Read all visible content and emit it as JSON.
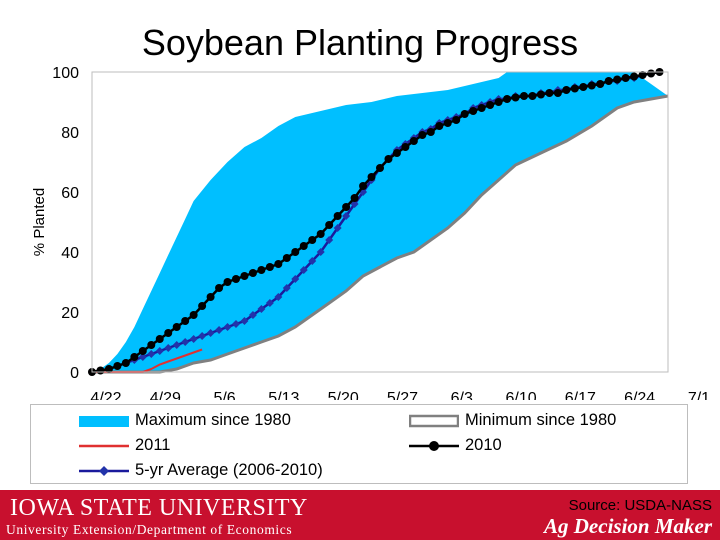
{
  "chart_data": {
    "type": "line",
    "title": "Soybean Planting Progress",
    "ylabel": "% Planted",
    "xlabel": "",
    "ylim": [
      0,
      100
    ],
    "yticks": [
      0,
      20,
      40,
      60,
      80,
      100
    ],
    "x_ticks": [
      "4/22",
      "4/29",
      "5/6",
      "5/13",
      "5/20",
      "5/27",
      "6/3",
      "6/10",
      "6/17",
      "6/24",
      "7/1"
    ],
    "grid": false,
    "legend_position": "bottom",
    "series": [
      {
        "name": "Maximum since 1980",
        "style": "area",
        "color": "#00bfff",
        "points": [
          [
            0,
            0
          ],
          [
            1,
            1
          ],
          [
            2,
            3
          ],
          [
            3,
            6
          ],
          [
            4,
            10
          ],
          [
            5,
            15
          ],
          [
            6,
            21
          ],
          [
            7,
            27
          ],
          [
            8,
            33
          ],
          [
            9,
            39
          ],
          [
            10,
            45
          ],
          [
            11,
            51
          ],
          [
            12,
            57
          ],
          [
            14,
            64
          ],
          [
            16,
            70
          ],
          [
            18,
            75
          ],
          [
            20,
            78
          ],
          [
            22,
            82
          ],
          [
            24,
            85
          ],
          [
            27,
            87
          ],
          [
            30,
            89
          ],
          [
            33,
            90
          ],
          [
            36,
            92
          ],
          [
            39,
            93
          ],
          [
            42,
            94
          ],
          [
            45,
            96
          ],
          [
            48,
            98
          ],
          [
            49,
            100
          ],
          [
            53,
            100
          ],
          [
            57,
            100
          ],
          [
            60,
            100
          ],
          [
            64,
            100
          ]
        ]
      },
      {
        "name": "Minimum since 1980",
        "style": "area-outline",
        "color": "#808080",
        "points": [
          [
            0,
            0
          ],
          [
            2,
            0
          ],
          [
            4,
            0
          ],
          [
            6,
            0
          ],
          [
            8,
            0
          ],
          [
            10,
            1
          ],
          [
            11,
            2
          ],
          [
            12,
            3
          ],
          [
            14,
            4
          ],
          [
            16,
            6
          ],
          [
            18,
            8
          ],
          [
            20,
            10
          ],
          [
            22,
            12
          ],
          [
            24,
            15
          ],
          [
            26,
            19
          ],
          [
            28,
            23
          ],
          [
            29,
            25
          ],
          [
            30,
            27
          ],
          [
            32,
            32
          ],
          [
            34,
            35
          ],
          [
            36,
            38
          ],
          [
            38,
            40
          ],
          [
            40,
            44
          ],
          [
            42,
            48
          ],
          [
            44,
            53
          ],
          [
            46,
            59
          ],
          [
            48,
            64
          ],
          [
            50,
            69
          ],
          [
            53,
            73
          ],
          [
            56,
            77
          ],
          [
            59,
            82
          ],
          [
            62,
            88
          ],
          [
            64,
            90
          ],
          [
            66,
            91
          ],
          [
            68,
            92
          ]
        ]
      },
      {
        "name": "2011",
        "style": "line",
        "color": "#e03030",
        "points": [
          [
            0,
            0
          ],
          [
            2,
            0
          ],
          [
            4,
            0
          ],
          [
            6,
            0
          ],
          [
            7,
            1
          ],
          [
            8,
            2.5
          ],
          [
            9,
            3.5
          ],
          [
            10,
            4.5
          ],
          [
            11,
            5.5
          ],
          [
            12,
            6.5
          ],
          [
            13,
            7.5
          ]
        ]
      },
      {
        "name": "2010",
        "style": "line-markers",
        "color": "#000000",
        "marker_color": "#000000",
        "points": [
          [
            0,
            0
          ],
          [
            1,
            0.5
          ],
          [
            2,
            1
          ],
          [
            3,
            2
          ],
          [
            4,
            3
          ],
          [
            5,
            5
          ],
          [
            6,
            7
          ],
          [
            7,
            9
          ],
          [
            8,
            11
          ],
          [
            9,
            13
          ],
          [
            10,
            15
          ],
          [
            11,
            17
          ],
          [
            12,
            19
          ],
          [
            13,
            22
          ],
          [
            14,
            25
          ],
          [
            15,
            28
          ],
          [
            16,
            30
          ],
          [
            17,
            31
          ],
          [
            18,
            32
          ],
          [
            19,
            33
          ],
          [
            20,
            34
          ],
          [
            21,
            35
          ],
          [
            22,
            36
          ],
          [
            23,
            38
          ],
          [
            24,
            40
          ],
          [
            25,
            42
          ],
          [
            26,
            44
          ],
          [
            27,
            46
          ],
          [
            28,
            49
          ],
          [
            29,
            52
          ],
          [
            30,
            55
          ],
          [
            31,
            58
          ],
          [
            32,
            62
          ],
          [
            33,
            65
          ],
          [
            34,
            68
          ],
          [
            35,
            71
          ],
          [
            36,
            73
          ],
          [
            37,
            75
          ],
          [
            38,
            77
          ],
          [
            39,
            79
          ],
          [
            40,
            80
          ],
          [
            41,
            82
          ],
          [
            42,
            83
          ],
          [
            43,
            84
          ],
          [
            44,
            86
          ],
          [
            45,
            87
          ],
          [
            46,
            88
          ],
          [
            47,
            89
          ],
          [
            48,
            90
          ],
          [
            49,
            91
          ],
          [
            50,
            91.5
          ],
          [
            51,
            92
          ],
          [
            52,
            92
          ],
          [
            53,
            92.5
          ],
          [
            54,
            93
          ],
          [
            55,
            93
          ],
          [
            56,
            94
          ],
          [
            57,
            94.5
          ],
          [
            58,
            95
          ],
          [
            59,
            95.5
          ],
          [
            60,
            96
          ],
          [
            61,
            97
          ],
          [
            62,
            97.5
          ],
          [
            63,
            98
          ],
          [
            64,
            98.5
          ],
          [
            65,
            99
          ],
          [
            66,
            99.5
          ],
          [
            67,
            100
          ]
        ]
      },
      {
        "name": "5-yr Average (2006-2010)",
        "style": "line-markers",
        "color": "#1a1a9c",
        "marker_color": "#2233aa",
        "points": [
          [
            0,
            0
          ],
          [
            1,
            0.5
          ],
          [
            2,
            1
          ],
          [
            3,
            2
          ],
          [
            4,
            3
          ],
          [
            5,
            4
          ],
          [
            6,
            5
          ],
          [
            7,
            6
          ],
          [
            8,
            7
          ],
          [
            9,
            8
          ],
          [
            10,
            9
          ],
          [
            11,
            10
          ],
          [
            12,
            11
          ],
          [
            13,
            12
          ],
          [
            14,
            13
          ],
          [
            15,
            14
          ],
          [
            16,
            15
          ],
          [
            17,
            16
          ],
          [
            18,
            17
          ],
          [
            19,
            19
          ],
          [
            20,
            21
          ],
          [
            21,
            23
          ],
          [
            22,
            25
          ],
          [
            23,
            28
          ],
          [
            24,
            31
          ],
          [
            25,
            34
          ],
          [
            26,
            37
          ],
          [
            27,
            40
          ],
          [
            28,
            44
          ],
          [
            29,
            48
          ],
          [
            30,
            52
          ],
          [
            31,
            56
          ],
          [
            32,
            60
          ],
          [
            33,
            64
          ],
          [
            34,
            68
          ],
          [
            35,
            71
          ],
          [
            36,
            74
          ],
          [
            37,
            76
          ],
          [
            38,
            78
          ],
          [
            39,
            80
          ],
          [
            40,
            81
          ],
          [
            41,
            83
          ],
          [
            42,
            84
          ],
          [
            43,
            85
          ],
          [
            44,
            86
          ],
          [
            45,
            88
          ],
          [
            46,
            89
          ],
          [
            47,
            90
          ],
          [
            48,
            91
          ],
          [
            49,
            91
          ],
          [
            50,
            92
          ],
          [
            51,
            92
          ],
          [
            52,
            92
          ],
          [
            53,
            93
          ],
          [
            54,
            93
          ],
          [
            55,
            94
          ],
          [
            56,
            94
          ],
          [
            57,
            95
          ],
          [
            58,
            95
          ],
          [
            59,
            96
          ],
          [
            60,
            96
          ],
          [
            61,
            97
          ],
          [
            62,
            97
          ],
          [
            63,
            98
          ],
          [
            64,
            98
          ],
          [
            65,
            99
          ],
          [
            66,
            99.5
          ],
          [
            67,
            100
          ]
        ]
      }
    ]
  },
  "legend": {
    "max": "Maximum since 1980",
    "min": "Minimum since 1980",
    "y2011": "2011",
    "y2010": "2010",
    "avg": "5-yr Average (2006-2010)"
  },
  "footer": {
    "university": "IOWA STATE UNIVERSITY",
    "department": "University Extension/Department of Economics",
    "source": "Source: USDA-NASS",
    "brand": "Ag Decision Maker"
  }
}
